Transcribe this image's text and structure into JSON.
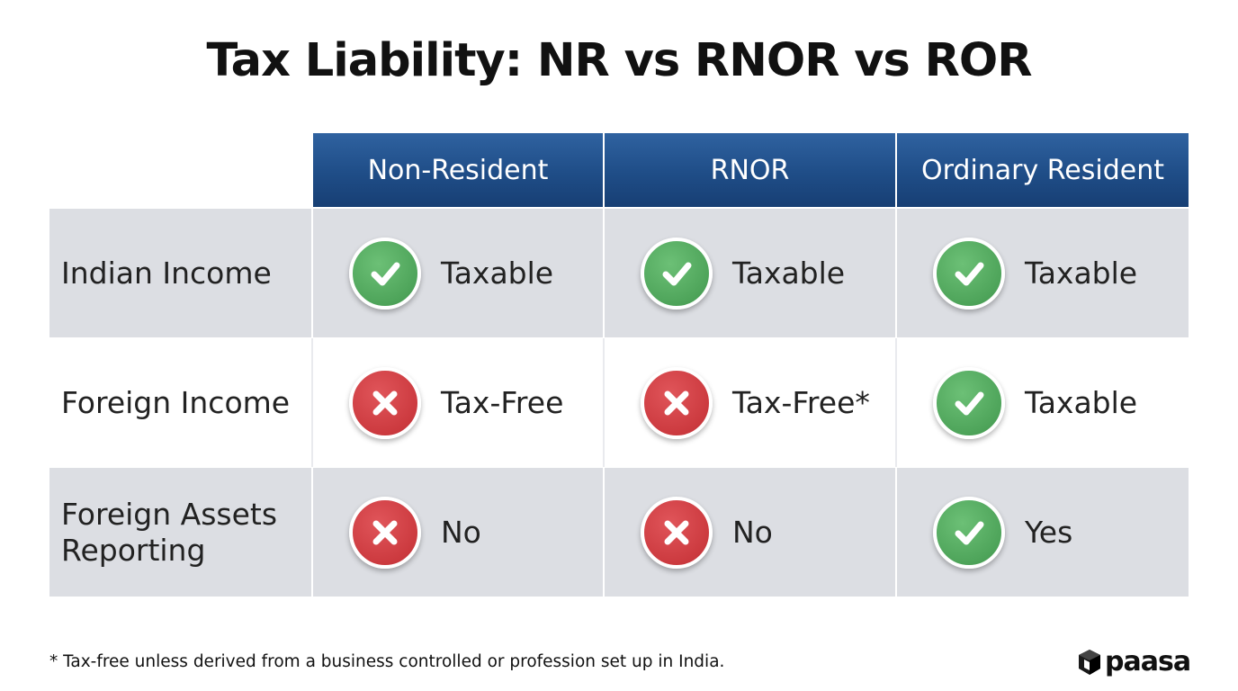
{
  "title": "Tax Liability: NR vs RNOR vs ROR",
  "columns": [
    "Non-Resident",
    "RNOR",
    "Ordinary Resident"
  ],
  "rows": [
    {
      "label": "Indian Income",
      "cells": [
        {
          "status": "check-icon",
          "text": "Taxable"
        },
        {
          "status": "check-icon",
          "text": "Taxable"
        },
        {
          "status": "check-icon",
          "text": "Taxable"
        }
      ]
    },
    {
      "label": "Foreign Income",
      "cells": [
        {
          "status": "cross-icon",
          "text": "Tax-Free"
        },
        {
          "status": "cross-icon",
          "text": "Tax-Free*"
        },
        {
          "status": "check-icon",
          "text": "Taxable"
        }
      ]
    },
    {
      "label": "Foreign Assets Reporting",
      "cells": [
        {
          "status": "cross-icon",
          "text": "No"
        },
        {
          "status": "cross-icon",
          "text": "No"
        },
        {
          "status": "check-icon",
          "text": "Yes"
        }
      ]
    }
  ],
  "footnote": "* Tax-free unless derived from a business controlled or profession set up in India.",
  "logo": "paasa",
  "colors": {
    "header": "#1f4d87",
    "check": "#4ea45a",
    "cross": "#cc3a3f",
    "row_shade": "#dcdee3"
  }
}
